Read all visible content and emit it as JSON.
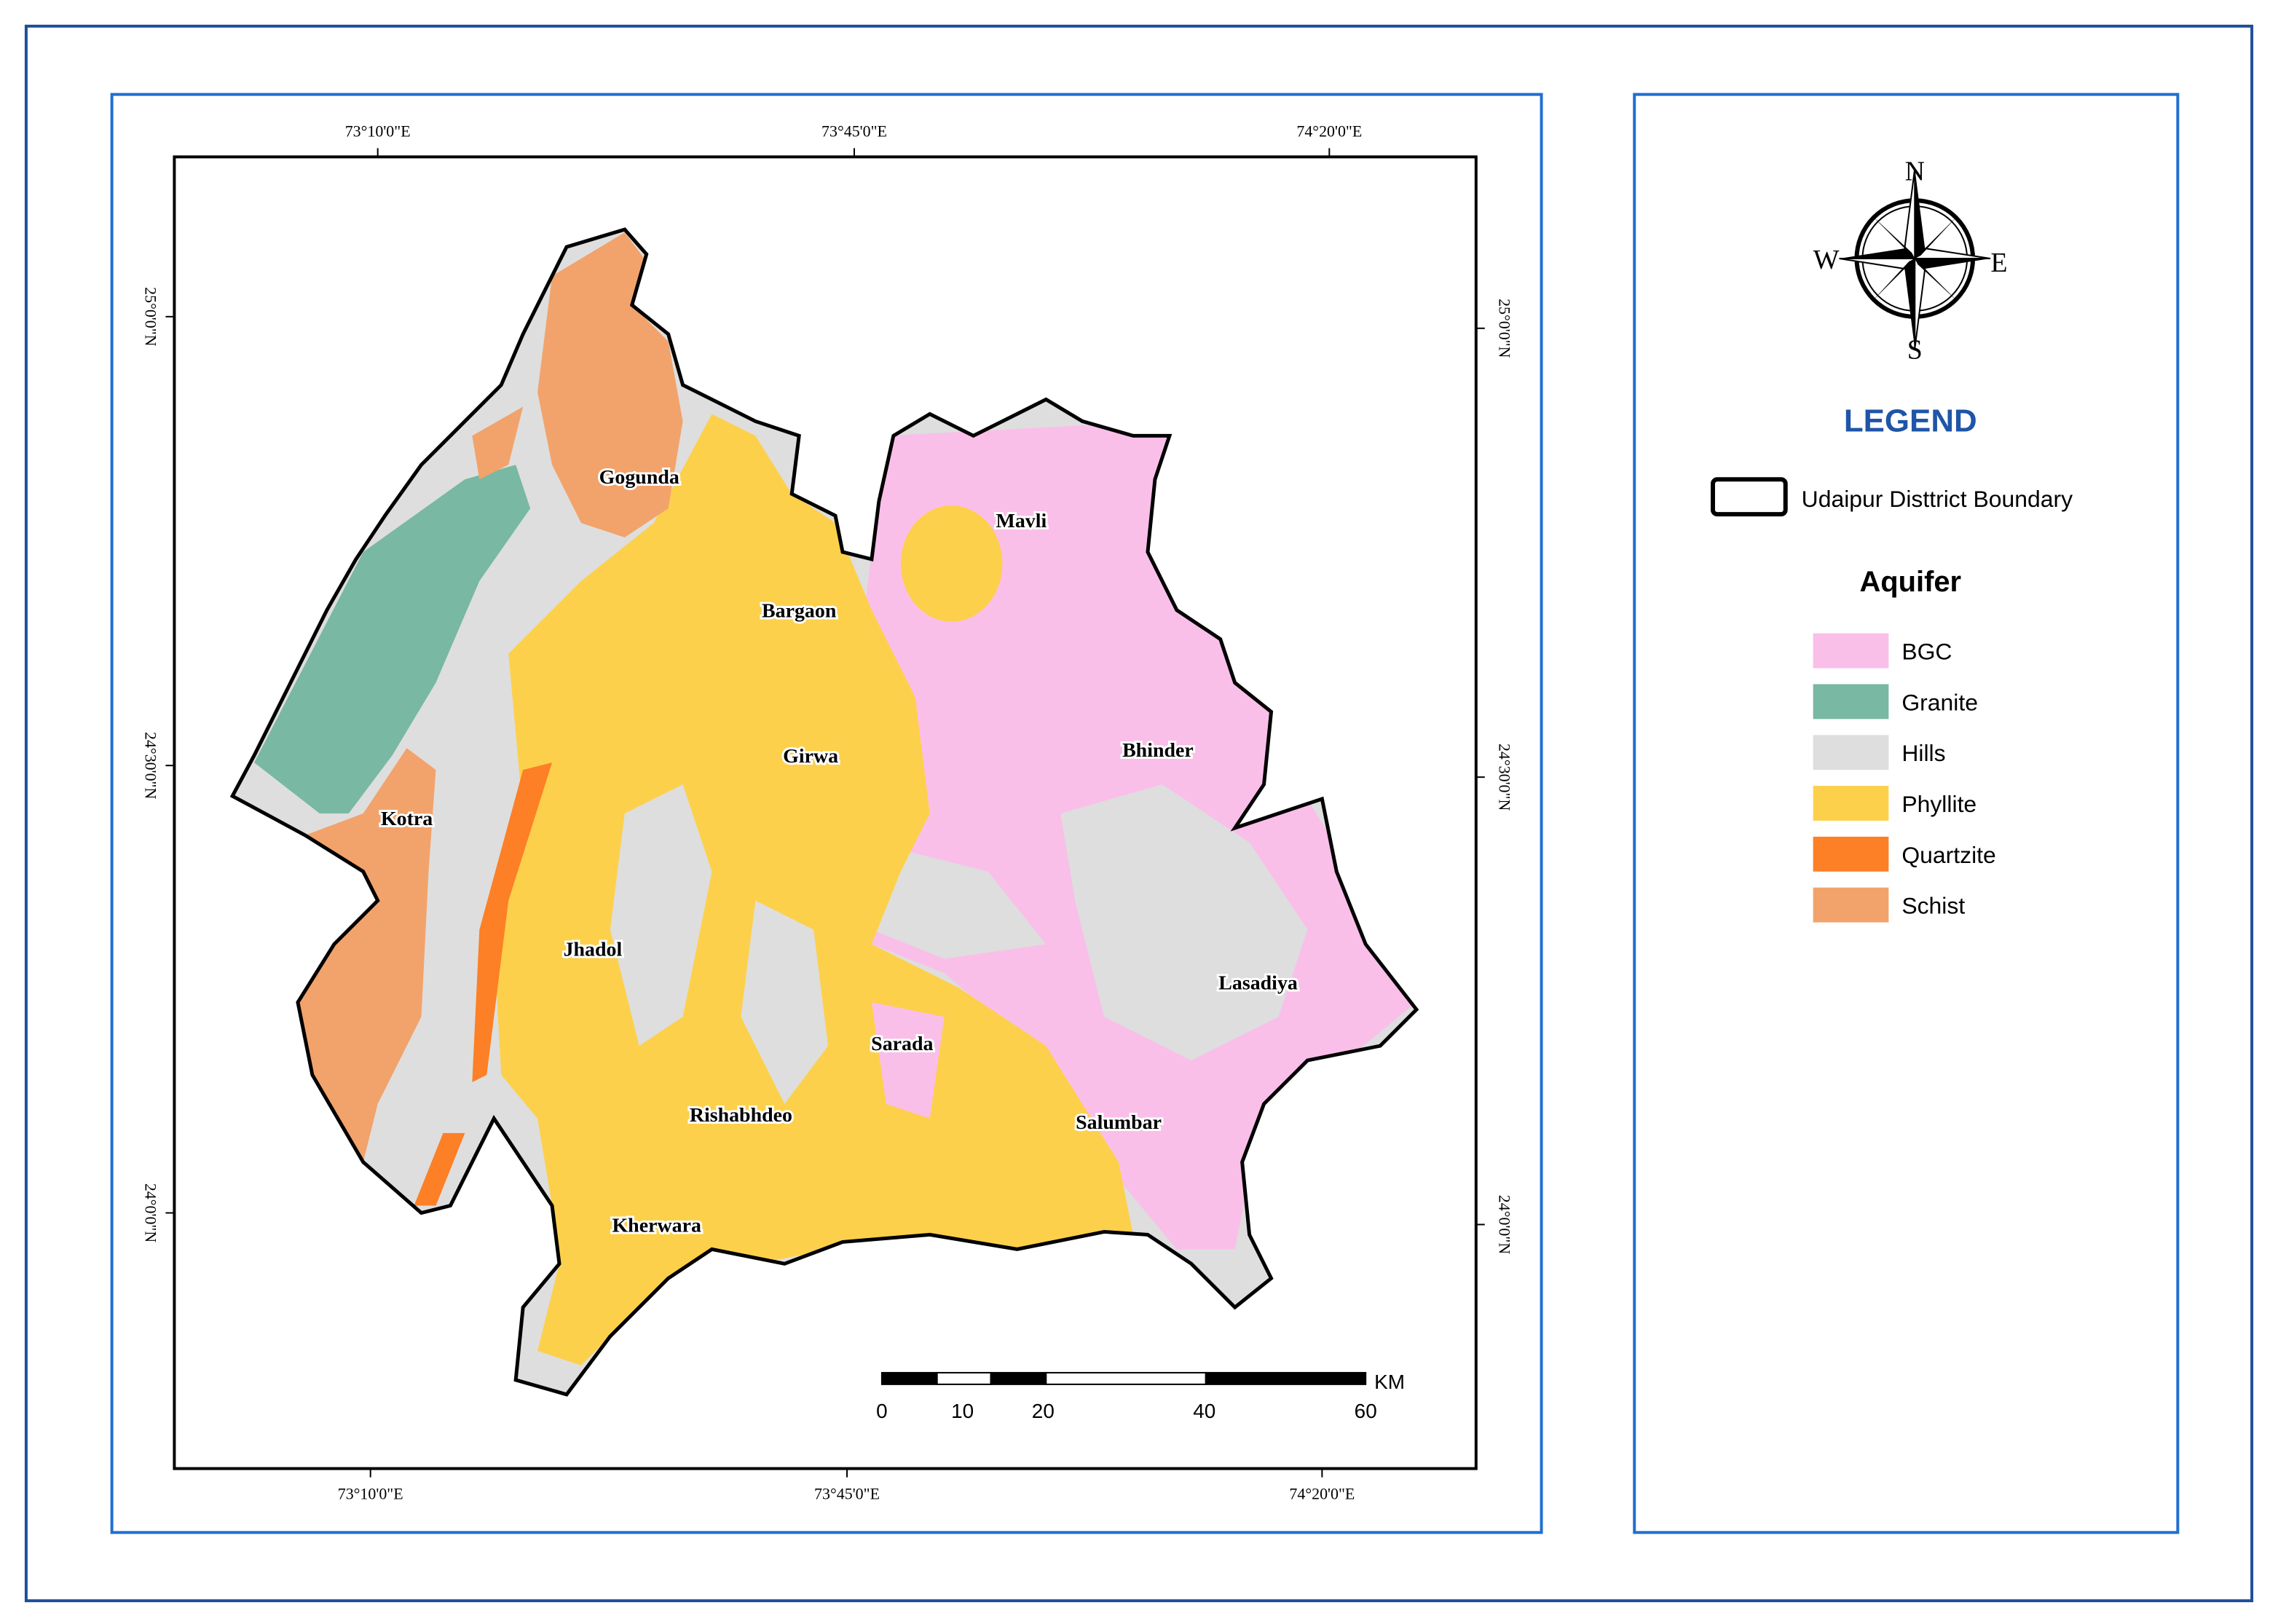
{
  "map": {
    "coordinates": {
      "top": [
        "73°10'0\"E",
        "73°45'0\"E",
        "74°20'0\"E"
      ],
      "bottom": [
        "73°10'0\"E",
        "73°45'0\"E",
        "74°20'0\"E"
      ],
      "left": [
        "25°0'0\"N",
        "24°30'0\"N",
        "24°0'0\"N"
      ],
      "right": [
        "25°0'0\"N",
        "24°30'0\"N",
        "24°0'0\"N"
      ]
    },
    "places": [
      "Gogunda",
      "Mavli",
      "Bargaon",
      "Girwa",
      "Bhinder",
      "Kotra",
      "Jhadol",
      "Lasadiya",
      "Sarada",
      "Rishabhdeo",
      "Salumbar",
      "Kherwara"
    ],
    "scale_bar": {
      "ticks": [
        0,
        10,
        20,
        40,
        60
      ],
      "unit": "KM"
    }
  },
  "compass": {
    "north": "N",
    "east": "E",
    "south": "S",
    "west": "W"
  },
  "legend": {
    "title": "LEGEND",
    "boundary": "Udaipur Disttrict Boundary",
    "aquifer_title": "Aquifer",
    "items": [
      {
        "name": "BGC",
        "color": "#f9bfe9"
      },
      {
        "name": "Granite",
        "color": "#79b8a3"
      },
      {
        "name": "Hills",
        "color": "#dedede"
      },
      {
        "name": "Phyllite",
        "color": "#fdd04c"
      },
      {
        "name": "Quartzite",
        "color": "#fd7f26"
      },
      {
        "name": "Schist",
        "color": "#f2a36b"
      }
    ]
  }
}
